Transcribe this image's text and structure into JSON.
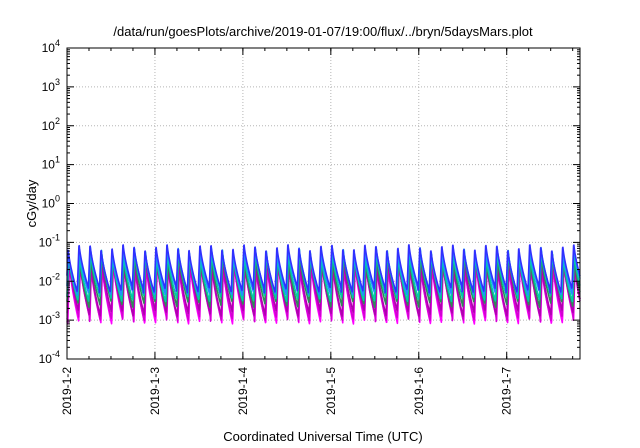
{
  "chart_data": {
    "type": "line",
    "title": "/data/run/goesPlots/archive/2019-01-07/19:00/flux/../bryn/5daysMars.plot",
    "xlabel": "Coordinated Universal Time (UTC)",
    "ylabel": "cGy/day",
    "x_scale": "time",
    "y_scale": "log",
    "xlim": [
      "2019-01-02T00:00",
      "2019-01-07T20:00"
    ],
    "ylim": [
      0.0001,
      10000
    ],
    "x_ticks": [
      "2019-1-2",
      "2019-1-3",
      "2019-1-4",
      "2019-1-5",
      "2019-1-6",
      "2019-1-7"
    ],
    "y_ticks": [
      {
        "value": 0.0001,
        "base": "10",
        "exp": "-4"
      },
      {
        "value": 0.001,
        "base": "10",
        "exp": "-3"
      },
      {
        "value": 0.01,
        "base": "10",
        "exp": "-2"
      },
      {
        "value": 0.1,
        "base": "10",
        "exp": "-1"
      },
      {
        "value": 1,
        "base": "10",
        "exp": "0"
      },
      {
        "value": 10,
        "base": "10",
        "exp": "1"
      },
      {
        "value": 100,
        "base": "10",
        "exp": "2"
      },
      {
        "value": 1000,
        "base": "10",
        "exp": "3"
      },
      {
        "value": 10000,
        "base": "10",
        "exp": "4"
      }
    ],
    "grid": true,
    "legend": "none",
    "cycle_hours": 3,
    "series": [
      {
        "color": "#ff00ff",
        "peak": 0.03,
        "trough": 0.0009
      },
      {
        "color": "#d400d4",
        "peak": 0.028,
        "trough": 0.0011
      },
      {
        "color": "#b000b0",
        "peak": 0.035,
        "trough": 0.0015
      },
      {
        "color": "#2e8b57",
        "peak": 0.045,
        "trough": 0.0025
      },
      {
        "color": "#00ccaa",
        "peak": 0.055,
        "trough": 0.0035
      },
      {
        "color": "#1e90ff",
        "peak": 0.07,
        "trough": 0.005
      },
      {
        "color": "#3030ff",
        "peak": 0.085,
        "trough": 0.006
      }
    ]
  }
}
